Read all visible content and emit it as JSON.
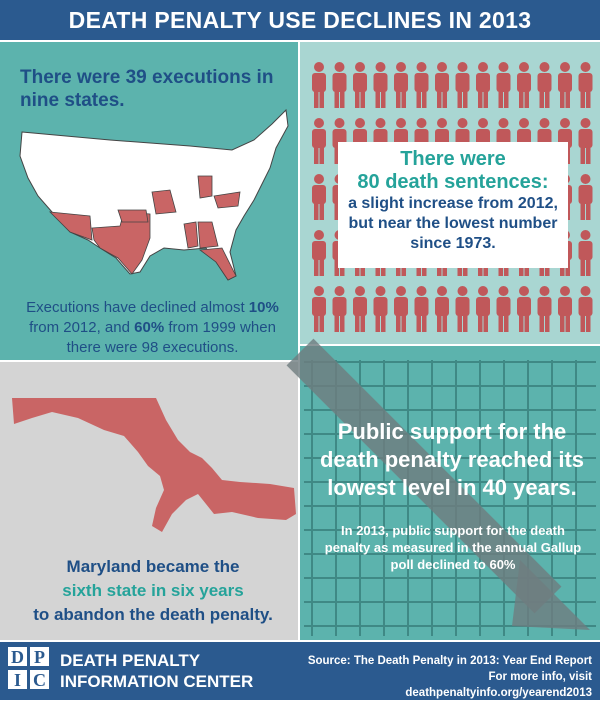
{
  "header": {
    "title": "DEATH PENALTY USE DECLINES IN 2013"
  },
  "executions": {
    "heading": "There were 39 executions in nine states.",
    "note": [
      "Executions have declined almost",
      "10%",
      "from 2012, and",
      "60%",
      "from 1999 when there were 98 executions."
    ]
  },
  "sentences": {
    "lines": [
      "There were",
      "80 death sentences:",
      "a slight increase from 2012, but near the lowest number since 1973."
    ]
  },
  "maryland": {
    "lines": [
      "Maryland became the",
      "sixth state in six years",
      "to abandon the death penalty."
    ]
  },
  "support": {
    "heading": "Public support for the death penalty reached its lowest level in 40 years.",
    "note": "In 2013, public support for the death penalty as measured in the annual Gallup poll declined to 60%"
  },
  "footer": {
    "logo": [
      "D",
      "P",
      "I",
      "C"
    ],
    "org": [
      "DEATH PENALTY",
      "INFORMATION CENTER"
    ],
    "source": [
      "Source: The Death Penalty in 2013: Year End Report",
      "For more info, visit deathpenaltyinfo.org/yearend2013"
    ]
  }
}
